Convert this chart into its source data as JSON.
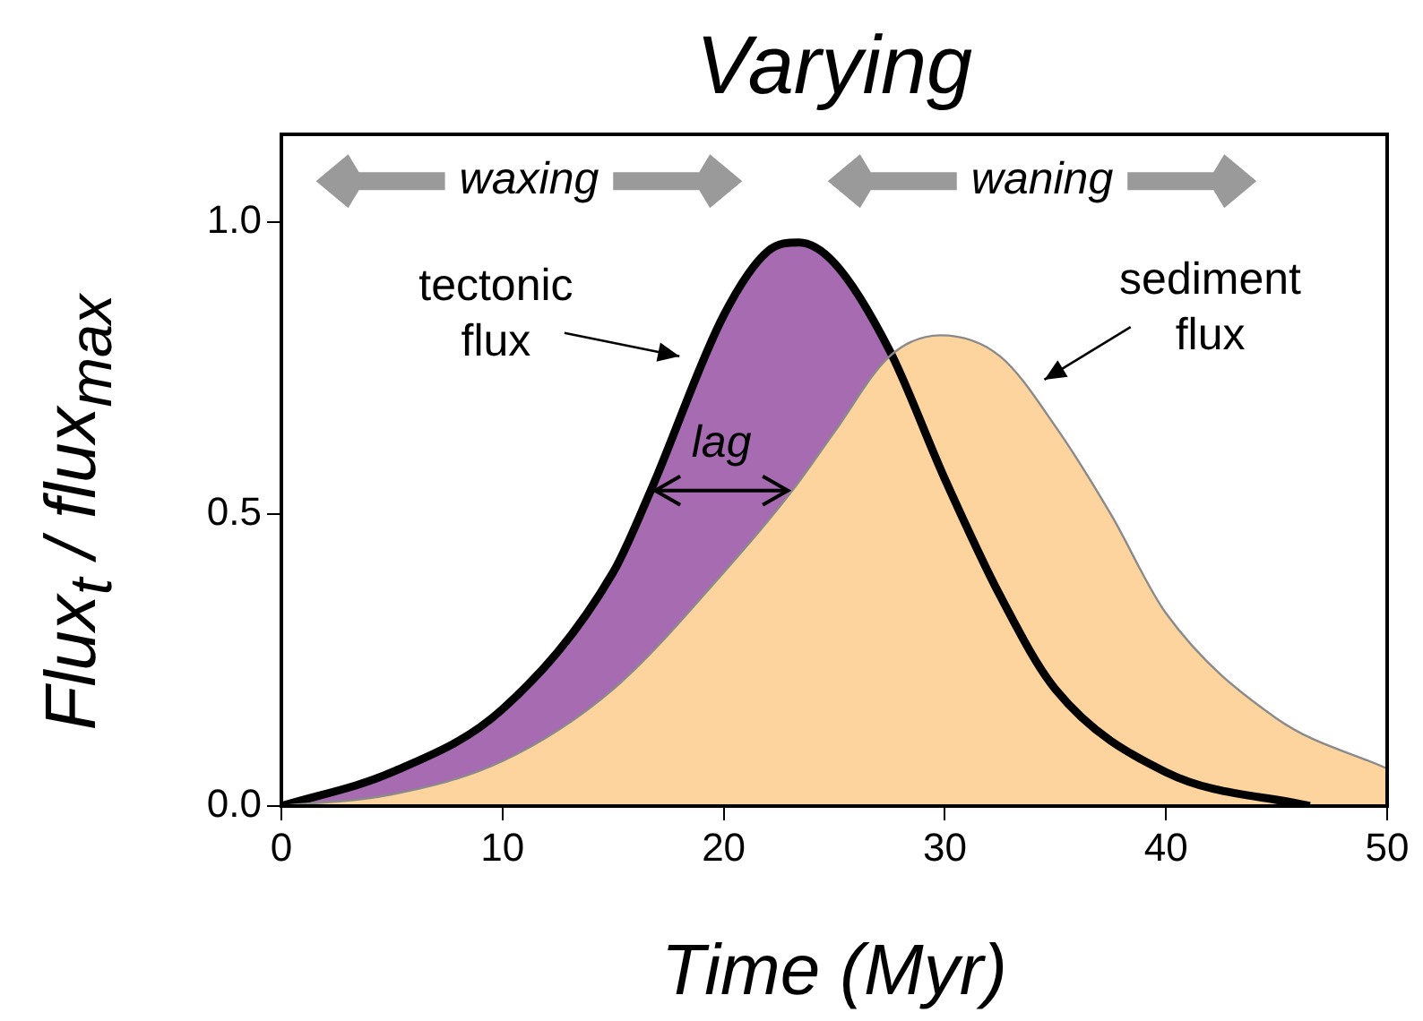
{
  "chart_data": {
    "type": "area",
    "title": "Varying",
    "xlabel": "Time (Myr)",
    "ylabel": "Flux$_{t}$ / flux$_{max}$",
    "xlim": [
      0,
      50
    ],
    "ylim": [
      0,
      1.15
    ],
    "xticks": [
      0,
      10,
      20,
      30,
      40,
      50
    ],
    "yticks": [
      {
        "value": 0,
        "label": "0.0"
      },
      {
        "value": 0.5,
        "label": "0.5"
      },
      {
        "value": 1,
        "label": "1.0"
      }
    ],
    "series": [
      {
        "color": "#a66bb0",
        "x": [
          0,
          5,
          10,
          15,
          16.7,
          20,
          22,
          23.4,
          25,
          27.5,
          30,
          32.5,
          35,
          40,
          46.5
        ],
        "values": [
          0,
          0.058,
          0.166,
          0.4,
          0.54,
          0.84,
          0.95,
          0.965,
          0.93,
          0.78,
          0.56,
          0.36,
          0.2,
          0.058,
          0
        ]
      },
      {
        "color": "#fdd49e",
        "x": [
          0,
          5,
          10,
          15,
          20,
          23.1,
          25,
          27.5,
          29.8,
          32.5,
          35,
          37.5,
          40,
          45,
          50
        ],
        "values": [
          0,
          0.02,
          0.077,
          0.2,
          0.4,
          0.54,
          0.64,
          0.77,
          0.806,
          0.77,
          0.65,
          0.5,
          0.33,
          0.15,
          0.064
        ]
      }
    ],
    "annotations": [
      "waxing",
      "waning",
      "tectonic flux",
      "sediment flux",
      "lag"
    ],
    "legend": false
  }
}
